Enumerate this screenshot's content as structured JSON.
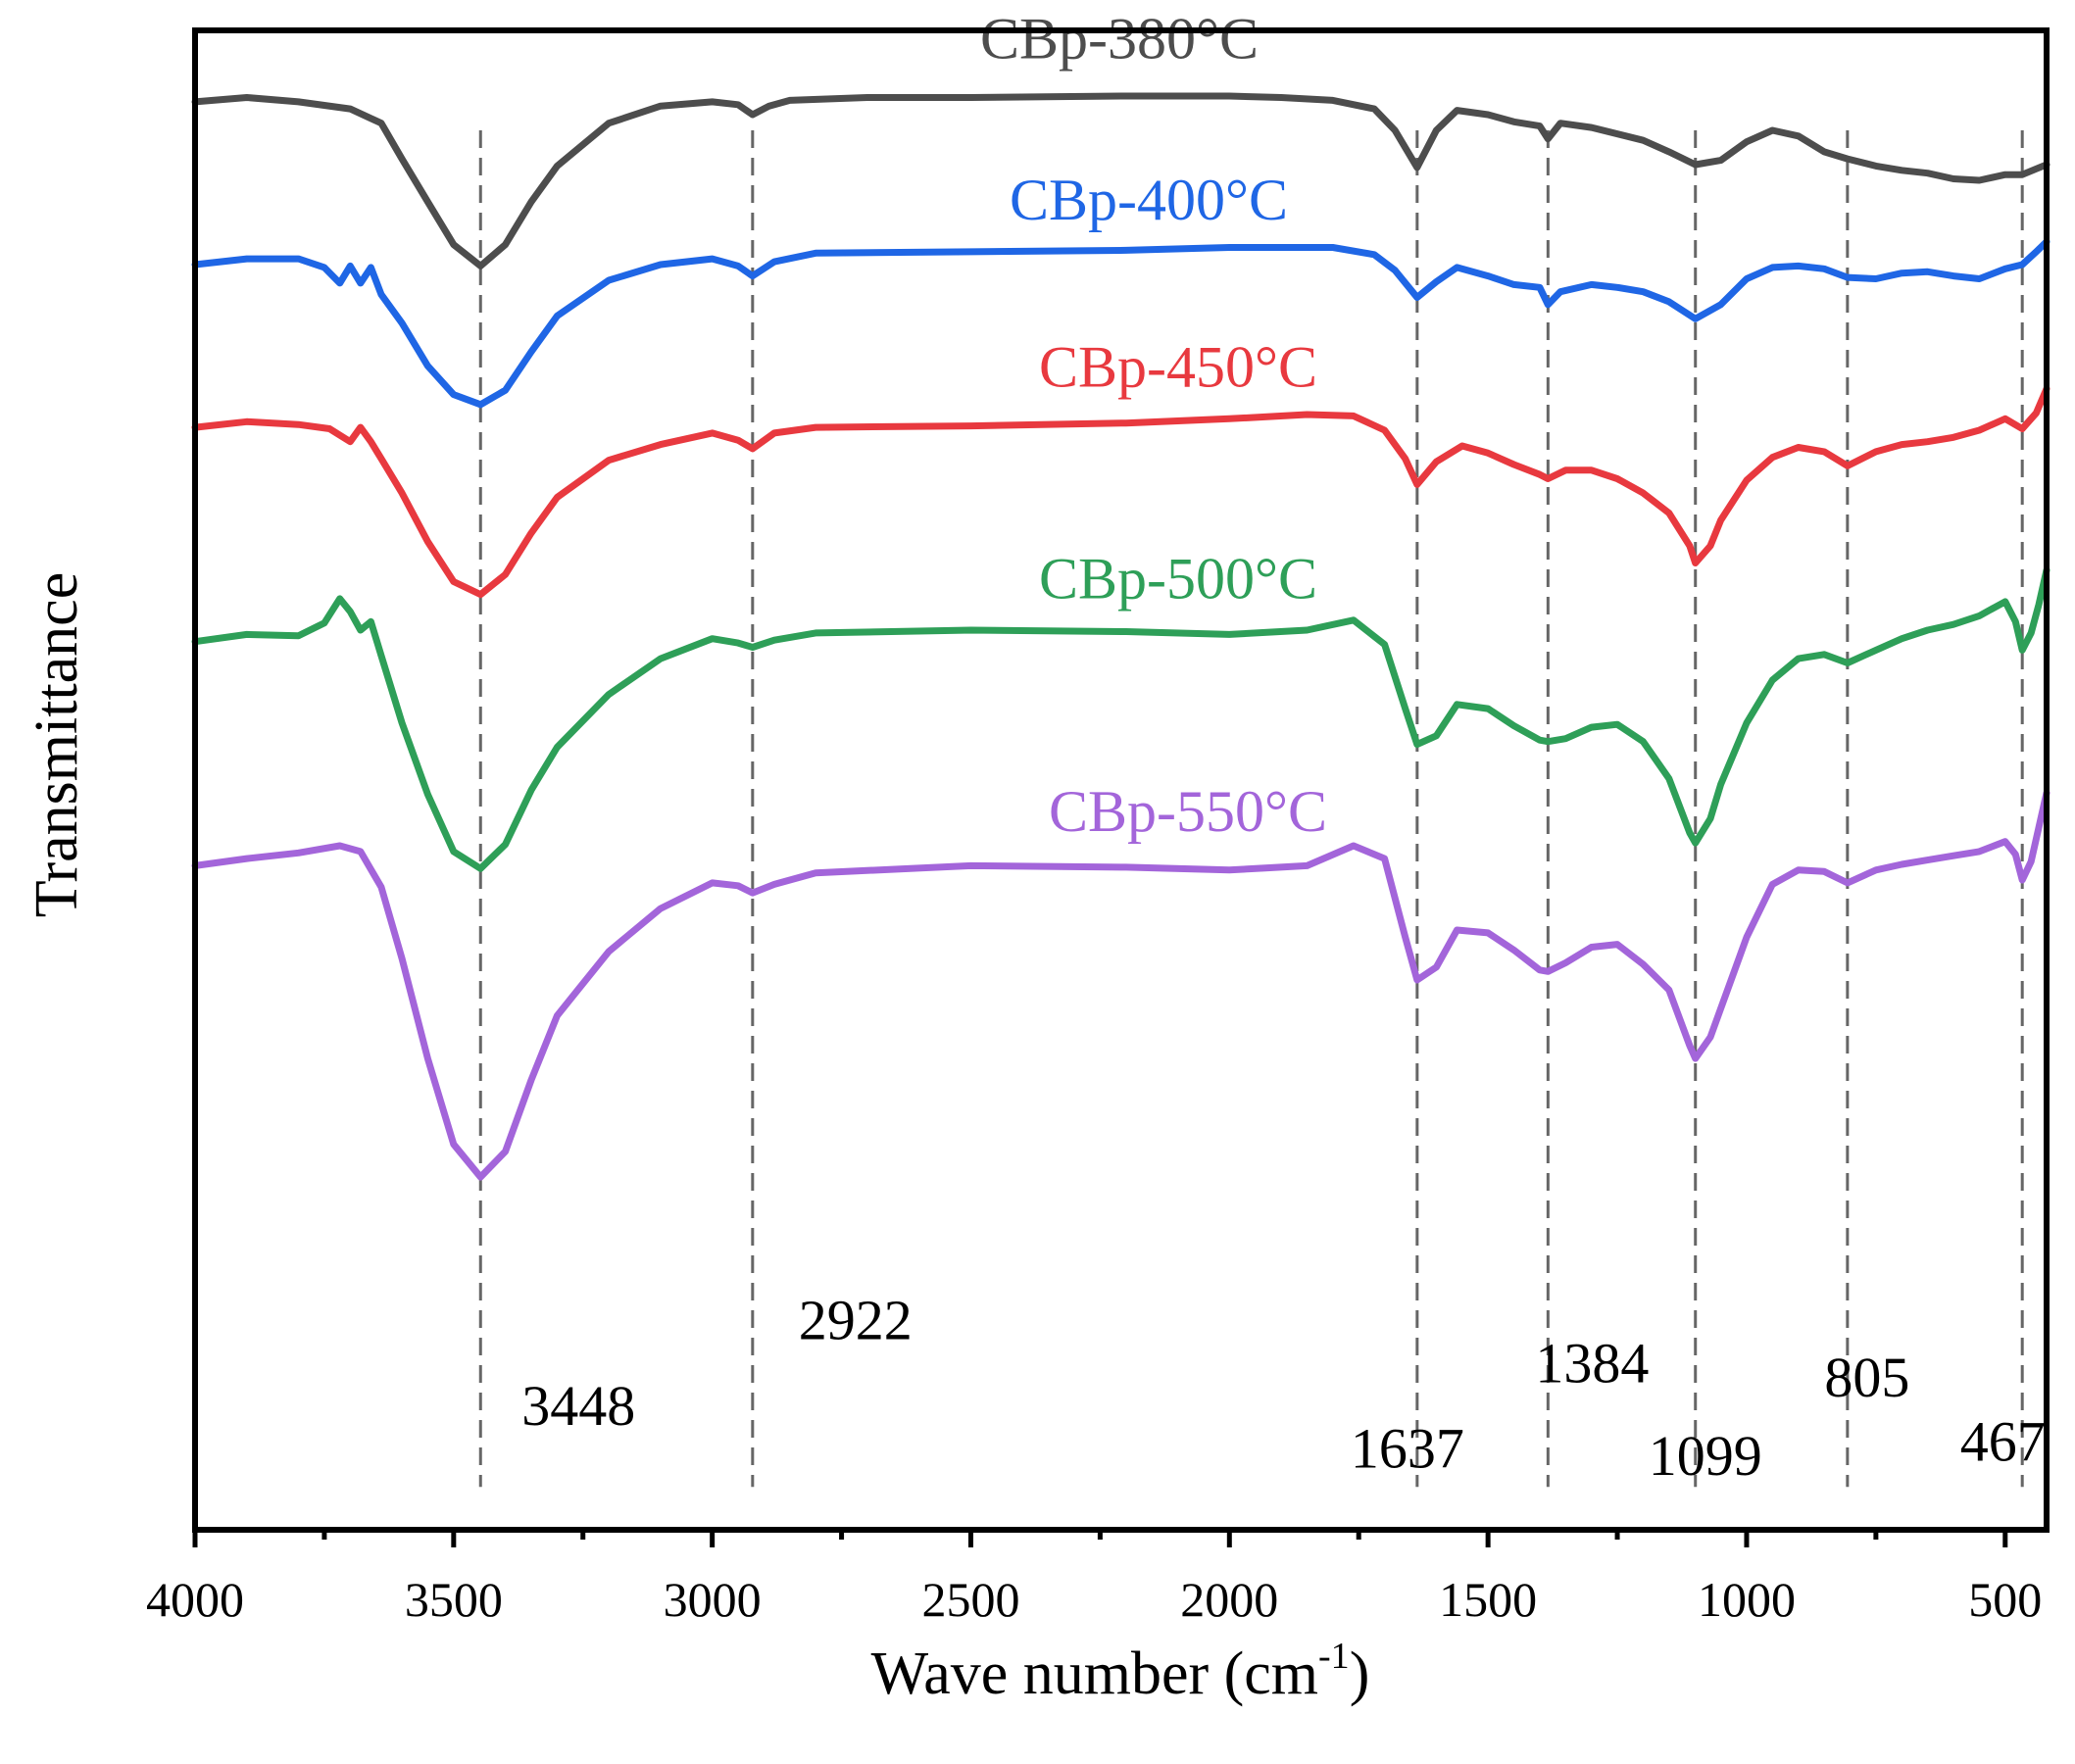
{
  "chart_data": {
    "type": "line",
    "title": "",
    "xlabel": "Wave number (cm",
    "xlabel_sup": "-1",
    "xlabel_close": ")",
    "ylabel": "Transmittance",
    "xlim": [
      4000,
      420
    ],
    "x_reversed": true,
    "ylim": [
      0,
      105
    ],
    "y_tick_labels_shown": false,
    "x_ticks": [
      {
        "value": 4000,
        "label": "4000"
      },
      {
        "value": 3500,
        "label": "3500"
      },
      {
        "value": 3000,
        "label": "3000"
      },
      {
        "value": 2500,
        "label": "2500"
      },
      {
        "value": 2000,
        "label": "2000"
      },
      {
        "value": 1500,
        "label": "1500"
      },
      {
        "value": 1000,
        "label": "1000"
      },
      {
        "value": 500,
        "label": "500"
      }
    ],
    "x_minor_ticks": [
      3750,
      3250,
      2750,
      2250,
      1750,
      1250,
      750
    ],
    "peak_markers": [
      {
        "value": 3448,
        "label": "3448",
        "level": 7
      },
      {
        "value": 2922,
        "label": "2922",
        "level": 13
      },
      {
        "value": 1637,
        "label": "1637",
        "level": 4
      },
      {
        "value": 1384,
        "label": "1384",
        "level": 10
      },
      {
        "value": 1099,
        "label": "1099",
        "level": 3.5
      },
      {
        "value": 805,
        "label": "805",
        "level": 9
      },
      {
        "value": 467,
        "label": "467",
        "level": 4.5
      }
    ],
    "series": [
      {
        "name": "CBp-380°C",
        "color": "#4d4d4d",
        "points": [
          [
            4000,
            100
          ],
          [
            3900,
            100.3
          ],
          [
            3800,
            100
          ],
          [
            3700,
            99.5
          ],
          [
            3640,
            98.5
          ],
          [
            3600,
            96
          ],
          [
            3550,
            93
          ],
          [
            3500,
            90
          ],
          [
            3448,
            88.5
          ],
          [
            3400,
            90
          ],
          [
            3350,
            93
          ],
          [
            3300,
            95.5
          ],
          [
            3200,
            98.5
          ],
          [
            3100,
            99.7
          ],
          [
            3000,
            100
          ],
          [
            2950,
            99.8
          ],
          [
            2922,
            99.1
          ],
          [
            2890,
            99.7
          ],
          [
            2850,
            100.1
          ],
          [
            2700,
            100.3
          ],
          [
            2500,
            100.3
          ],
          [
            2200,
            100.4
          ],
          [
            2000,
            100.4
          ],
          [
            1900,
            100.3
          ],
          [
            1800,
            100.1
          ],
          [
            1720,
            99.5
          ],
          [
            1680,
            98
          ],
          [
            1637,
            95.4
          ],
          [
            1600,
            98
          ],
          [
            1560,
            99.4
          ],
          [
            1500,
            99.1
          ],
          [
            1450,
            98.6
          ],
          [
            1400,
            98.3
          ],
          [
            1384,
            97.4
          ],
          [
            1360,
            98.5
          ],
          [
            1300,
            98.2
          ],
          [
            1200,
            97.3
          ],
          [
            1150,
            96.5
          ],
          [
            1099,
            95.6
          ],
          [
            1050,
            95.9
          ],
          [
            1000,
            97.2
          ],
          [
            950,
            98
          ],
          [
            900,
            97.6
          ],
          [
            850,
            96.5
          ],
          [
            805,
            96
          ],
          [
            750,
            95.5
          ],
          [
            700,
            95.2
          ],
          [
            650,
            95
          ],
          [
            600,
            94.6
          ],
          [
            550,
            94.5
          ],
          [
            500,
            94.9
          ],
          [
            467,
            94.9
          ],
          [
            440,
            95.3
          ],
          [
            420,
            95.6
          ]
        ]
      },
      {
        "name": "CBp-400°C",
        "color": "#1f66e5",
        "points": [
          [
            4000,
            88.6
          ],
          [
            3900,
            89
          ],
          [
            3800,
            89
          ],
          [
            3750,
            88.4
          ],
          [
            3720,
            87.3
          ],
          [
            3700,
            88.5
          ],
          [
            3680,
            87.3
          ],
          [
            3660,
            88.4
          ],
          [
            3640,
            86.5
          ],
          [
            3600,
            84.5
          ],
          [
            3550,
            81.5
          ],
          [
            3500,
            79.5
          ],
          [
            3448,
            78.8
          ],
          [
            3400,
            79.8
          ],
          [
            3350,
            82.5
          ],
          [
            3300,
            85
          ],
          [
            3200,
            87.5
          ],
          [
            3100,
            88.6
          ],
          [
            3000,
            89
          ],
          [
            2950,
            88.5
          ],
          [
            2922,
            87.8
          ],
          [
            2880,
            88.8
          ],
          [
            2800,
            89.4
          ],
          [
            2500,
            89.5
          ],
          [
            2200,
            89.6
          ],
          [
            2000,
            89.8
          ],
          [
            1800,
            89.8
          ],
          [
            1720,
            89.3
          ],
          [
            1680,
            88.2
          ],
          [
            1637,
            86.3
          ],
          [
            1600,
            87.4
          ],
          [
            1560,
            88.4
          ],
          [
            1500,
            87.8
          ],
          [
            1450,
            87.2
          ],
          [
            1400,
            87
          ],
          [
            1384,
            85.8
          ],
          [
            1360,
            86.7
          ],
          [
            1300,
            87.2
          ],
          [
            1250,
            87
          ],
          [
            1200,
            86.7
          ],
          [
            1150,
            86
          ],
          [
            1099,
            84.8
          ],
          [
            1050,
            85.8
          ],
          [
            1000,
            87.6
          ],
          [
            950,
            88.4
          ],
          [
            900,
            88.5
          ],
          [
            850,
            88.3
          ],
          [
            805,
            87.7
          ],
          [
            750,
            87.6
          ],
          [
            700,
            88
          ],
          [
            650,
            88.1
          ],
          [
            600,
            87.8
          ],
          [
            550,
            87.6
          ],
          [
            500,
            88.3
          ],
          [
            467,
            88.6
          ],
          [
            440,
            89.5
          ],
          [
            420,
            90.2
          ]
        ]
      },
      {
        "name": "CBp-450°C",
        "color": "#e8393f",
        "points": [
          [
            4000,
            77.2
          ],
          [
            3900,
            77.6
          ],
          [
            3800,
            77.4
          ],
          [
            3740,
            77.1
          ],
          [
            3700,
            76.2
          ],
          [
            3680,
            77.2
          ],
          [
            3660,
            76.2
          ],
          [
            3640,
            75
          ],
          [
            3600,
            72.6
          ],
          [
            3550,
            69.2
          ],
          [
            3500,
            66.4
          ],
          [
            3448,
            65.5
          ],
          [
            3400,
            66.9
          ],
          [
            3350,
            69.8
          ],
          [
            3300,
            72.3
          ],
          [
            3200,
            74.9
          ],
          [
            3100,
            76
          ],
          [
            3000,
            76.8
          ],
          [
            2950,
            76.3
          ],
          [
            2922,
            75.7
          ],
          [
            2880,
            76.8
          ],
          [
            2800,
            77.2
          ],
          [
            2500,
            77.3
          ],
          [
            2200,
            77.5
          ],
          [
            2000,
            77.8
          ],
          [
            1850,
            78.1
          ],
          [
            1760,
            78
          ],
          [
            1700,
            77
          ],
          [
            1660,
            75
          ],
          [
            1637,
            73.2
          ],
          [
            1600,
            74.8
          ],
          [
            1550,
            75.9
          ],
          [
            1500,
            75.4
          ],
          [
            1450,
            74.6
          ],
          [
            1400,
            73.9
          ],
          [
            1384,
            73.6
          ],
          [
            1350,
            74.2
          ],
          [
            1300,
            74.2
          ],
          [
            1250,
            73.6
          ],
          [
            1200,
            72.6
          ],
          [
            1150,
            71.2
          ],
          [
            1110,
            68.9
          ],
          [
            1099,
            67.7
          ],
          [
            1070,
            68.9
          ],
          [
            1050,
            70.7
          ],
          [
            1000,
            73.5
          ],
          [
            950,
            75.1
          ],
          [
            900,
            75.8
          ],
          [
            850,
            75.5
          ],
          [
            805,
            74.5
          ],
          [
            750,
            75.5
          ],
          [
            700,
            76
          ],
          [
            650,
            76.2
          ],
          [
            600,
            76.5
          ],
          [
            550,
            77
          ],
          [
            500,
            77.8
          ],
          [
            467,
            77.1
          ],
          [
            440,
            78.2
          ],
          [
            420,
            79.9
          ]
        ]
      },
      {
        "name": "CBp-500°C",
        "color": "#2e9f58",
        "points": [
          [
            4000,
            62.2
          ],
          [
            3900,
            62.7
          ],
          [
            3800,
            62.6
          ],
          [
            3750,
            63.5
          ],
          [
            3720,
            65.2
          ],
          [
            3700,
            64.3
          ],
          [
            3680,
            63
          ],
          [
            3660,
            63.6
          ],
          [
            3640,
            61.2
          ],
          [
            3600,
            56.5
          ],
          [
            3550,
            51.5
          ],
          [
            3500,
            47.5
          ],
          [
            3448,
            46.3
          ],
          [
            3400,
            48
          ],
          [
            3350,
            51.8
          ],
          [
            3300,
            54.8
          ],
          [
            3200,
            58.5
          ],
          [
            3100,
            61
          ],
          [
            3000,
            62.4
          ],
          [
            2950,
            62.1
          ],
          [
            2922,
            61.8
          ],
          [
            2880,
            62.3
          ],
          [
            2800,
            62.8
          ],
          [
            2500,
            63
          ],
          [
            2200,
            62.9
          ],
          [
            2000,
            62.7
          ],
          [
            1850,
            63
          ],
          [
            1760,
            63.7
          ],
          [
            1700,
            62
          ],
          [
            1660,
            57.5
          ],
          [
            1637,
            55
          ],
          [
            1600,
            55.6
          ],
          [
            1560,
            57.8
          ],
          [
            1500,
            57.5
          ],
          [
            1450,
            56.3
          ],
          [
            1400,
            55.3
          ],
          [
            1384,
            55.2
          ],
          [
            1350,
            55.4
          ],
          [
            1300,
            56.2
          ],
          [
            1250,
            56.4
          ],
          [
            1200,
            55.2
          ],
          [
            1150,
            52.6
          ],
          [
            1110,
            48.8
          ],
          [
            1099,
            48.1
          ],
          [
            1070,
            49.8
          ],
          [
            1050,
            52.2
          ],
          [
            1000,
            56.5
          ],
          [
            950,
            59.5
          ],
          [
            900,
            61
          ],
          [
            850,
            61.3
          ],
          [
            805,
            60.7
          ],
          [
            750,
            61.6
          ],
          [
            700,
            62.4
          ],
          [
            650,
            63
          ],
          [
            600,
            63.4
          ],
          [
            550,
            64
          ],
          [
            500,
            65
          ],
          [
            480,
            63.6
          ],
          [
            467,
            61.6
          ],
          [
            450,
            62.8
          ],
          [
            435,
            64.8
          ],
          [
            420,
            67.2
          ]
        ]
      },
      {
        "name": "CBp-550°C",
        "color": "#a365da",
        "points": [
          [
            4000,
            46.5
          ],
          [
            3900,
            47
          ],
          [
            3800,
            47.4
          ],
          [
            3720,
            47.9
          ],
          [
            3680,
            47.5
          ],
          [
            3640,
            45
          ],
          [
            3600,
            40
          ],
          [
            3550,
            33
          ],
          [
            3500,
            27
          ],
          [
            3448,
            24.7
          ],
          [
            3400,
            26.5
          ],
          [
            3350,
            31.5
          ],
          [
            3300,
            36
          ],
          [
            3200,
            40.5
          ],
          [
            3100,
            43.5
          ],
          [
            3000,
            45.3
          ],
          [
            2950,
            45.1
          ],
          [
            2922,
            44.6
          ],
          [
            2880,
            45.2
          ],
          [
            2800,
            46
          ],
          [
            2500,
            46.5
          ],
          [
            2200,
            46.4
          ],
          [
            2000,
            46.2
          ],
          [
            1850,
            46.5
          ],
          [
            1760,
            47.9
          ],
          [
            1700,
            47
          ],
          [
            1660,
            41.5
          ],
          [
            1637,
            38.5
          ],
          [
            1600,
            39.4
          ],
          [
            1560,
            42
          ],
          [
            1500,
            41.8
          ],
          [
            1450,
            40.6
          ],
          [
            1400,
            39.2
          ],
          [
            1384,
            39.1
          ],
          [
            1350,
            39.7
          ],
          [
            1300,
            40.8
          ],
          [
            1250,
            41
          ],
          [
            1200,
            39.6
          ],
          [
            1150,
            37.8
          ],
          [
            1110,
            33.9
          ],
          [
            1099,
            33
          ],
          [
            1070,
            34.5
          ],
          [
            1050,
            36.5
          ],
          [
            1000,
            41.5
          ],
          [
            950,
            45.2
          ],
          [
            900,
            46.2
          ],
          [
            850,
            46.1
          ],
          [
            805,
            45.3
          ],
          [
            750,
            46.2
          ],
          [
            700,
            46.6
          ],
          [
            650,
            46.9
          ],
          [
            600,
            47.2
          ],
          [
            550,
            47.5
          ],
          [
            500,
            48.2
          ],
          [
            480,
            47.3
          ],
          [
            467,
            45.5
          ],
          [
            450,
            46.8
          ],
          [
            435,
            49.2
          ],
          [
            420,
            51.6
          ]
        ]
      }
    ]
  }
}
